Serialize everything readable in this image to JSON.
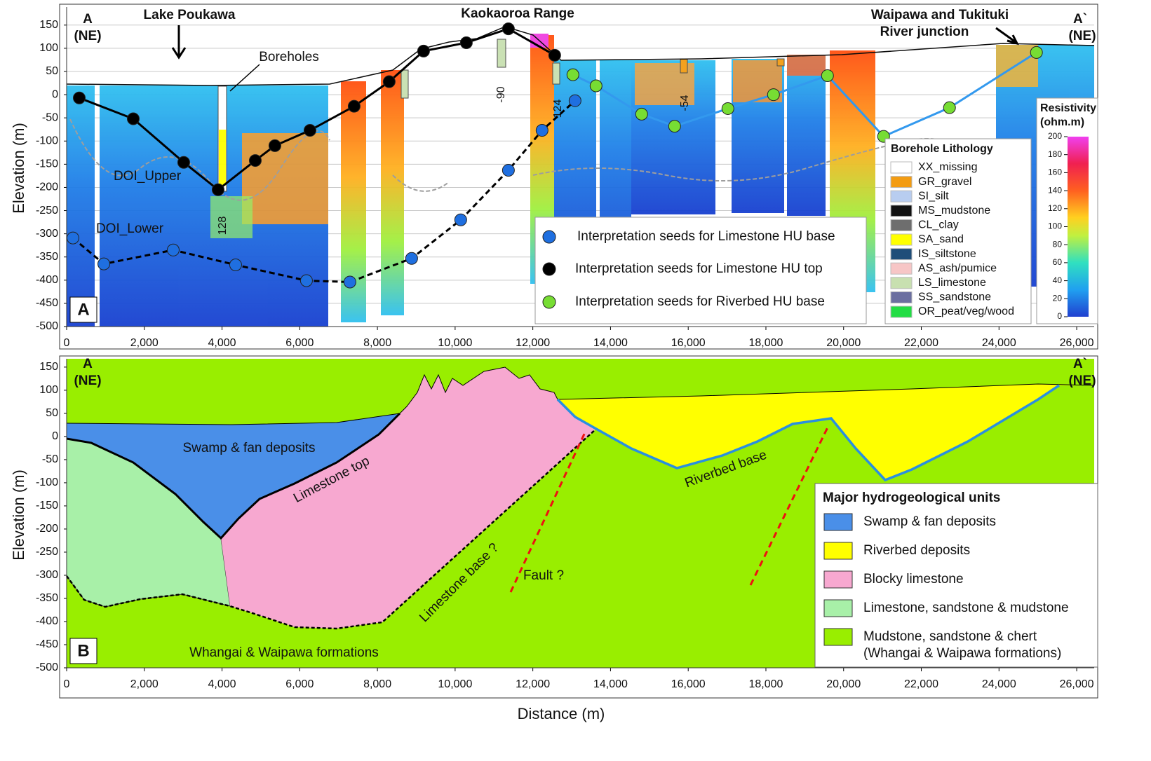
{
  "chart_data": [
    {
      "type": "scatter",
      "panel_label": "A",
      "x_label": "Distance (m)",
      "y_label": "Elevation (m)",
      "annotations": {
        "left_end": "A",
        "left_end_dir": "(NE)",
        "lake": "Lake Poukawa",
        "range": "Kaokaoroa Range",
        "junction_1": "Waipawa and Tukituki",
        "junction_2": "River junction",
        "right_end": "A`",
        "right_end_dir": "(NE)",
        "boreholes": "Boreholes",
        "doi_upper": "DOI_Upper",
        "doi_lower": "DOI_Lower",
        "bh_1": "128",
        "bh_2": "-90",
        "bh_3": "124",
        "bh_4": "-54"
      },
      "xlim": [
        0,
        26450
      ],
      "ylim": [
        -500,
        189
      ],
      "xticks": [
        0,
        {
          "value": 2000,
          "label": "2,000"
        },
        {
          "value": 4000,
          "label": "4,000"
        },
        {
          "value": 6000,
          "label": "6,000"
        },
        {
          "value": 8000,
          "label": "8,000"
        },
        {
          "value": 10000,
          "label": "10,000"
        },
        {
          "value": 12000,
          "label": "12,000"
        },
        {
          "value": 14000,
          "label": "14,000"
        },
        {
          "value": 16000,
          "label": "16,000"
        },
        {
          "value": 18000,
          "label": "18,000"
        },
        {
          "value": 20000,
          "label": "20,000"
        },
        {
          "value": 22000,
          "label": "22,000"
        },
        {
          "value": 24000,
          "label": "24,000"
        },
        {
          "value": 26000,
          "label": "26,000"
        }
      ],
      "yticks": [
        -500,
        -450,
        -400,
        -350,
        -300,
        -250,
        -200,
        -150,
        -100,
        -50,
        0,
        50,
        100,
        150
      ],
      "grid": true,
      "series": [
        {
          "name": "Interpretation seeds for Limestone  HU base",
          "color": "#1f6fe0",
          "line_color": "#000000",
          "line_style": "dashed",
          "x": [
            162,
            957,
            2744,
            4350,
            6173,
            7292,
            8881,
            10144,
            11372,
            12238,
            13087
          ],
          "values": [
            -309,
            -365,
            -335,
            -367,
            -401,
            -404,
            -353,
            -270,
            -163,
            -77,
            -13
          ]
        },
        {
          "name": "Interpretation seeds for Limestone  HU top",
          "color": "#000000",
          "line_color": "#000000",
          "line_style": "solid",
          "x": [
            325,
            1715,
            3014,
            3899,
            4856,
            5361,
            6264,
            7401,
            8303,
            9188,
            10289,
            11372,
            12563
          ],
          "values": [
            -7,
            -52,
            -146,
            -205,
            -142,
            -110,
            -77,
            -25,
            28,
            94,
            112,
            142,
            85
          ]
        },
        {
          "name": "Interpretation seeds for Riverbed  HU base",
          "color": "#77dd33",
          "line_color": "#3399ee",
          "line_style": "solid",
          "x": [
            13032,
            13628,
            14801,
            15650,
            17021,
            18195,
            19585,
            21029,
            22726,
            24964
          ],
          "values": [
            43,
            19,
            -42,
            -68,
            -30,
            0,
            41,
            -90,
            -28,
            91
          ]
        }
      ],
      "lithology": {
        "title": "Borehole Lithology",
        "items": [
          {
            "label": "XX_missing",
            "color": "#ffffff"
          },
          {
            "label": "GR_gravel",
            "color": "#f39c12"
          },
          {
            "label": "SI_silt",
            "color": "#b8cdf0"
          },
          {
            "label": "MS_mudstone",
            "color": "#111111"
          },
          {
            "label": "CL_clay",
            "color": "#6e6e6e"
          },
          {
            "label": "SA_sand",
            "color": "#ffff00"
          },
          {
            "label": "IS_siltstone",
            "color": "#1f4e79"
          },
          {
            "label": "AS_ash/pumice",
            "color": "#f7c6c6"
          },
          {
            "label": "LS_limestone",
            "color": "#c8e0b0"
          },
          {
            "label": "SS_sandstone",
            "color": "#6b6fa0"
          },
          {
            "label": "OR_peat/veg/wood",
            "color": "#22dd44"
          }
        ]
      },
      "colorbar": {
        "title": [
          "Resistivity",
          "(ohm.m)"
        ],
        "ticks": [
          0,
          20,
          40,
          60,
          80,
          100,
          120,
          140,
          160,
          180,
          200
        ],
        "lim": [
          0,
          200
        ]
      }
    },
    {
      "type": "area",
      "panel_label": "B",
      "x_label": "Distance (m)",
      "y_label": "Elevation (m)",
      "annotations": {
        "left_end": "A",
        "left_end_dir": "(NE)",
        "right_end": "A`",
        "right_end_dir": "(NE)",
        "swamp": "Swamp & fan deposits",
        "limestone_top": "Limestone top",
        "riverbed_base": "Riverbed base",
        "limestone_base": "Limestone base ?",
        "fault": "Fault ?",
        "formations": "Whangai & Waipawa formations"
      },
      "xlim": [
        0,
        26450
      ],
      "ylim": [
        -500,
        168
      ],
      "xticks": [
        0,
        {
          "value": 2000,
          "label": "2,000"
        },
        {
          "value": 4000,
          "label": "4,000"
        },
        {
          "value": 6000,
          "label": "6,000"
        },
        {
          "value": 8000,
          "label": "8,000"
        },
        {
          "value": 10000,
          "label": "10,000"
        },
        {
          "value": 12000,
          "label": "12,000"
        },
        {
          "value": 14000,
          "label": "14,000"
        },
        {
          "value": 16000,
          "label": "16,000"
        },
        {
          "value": 18000,
          "label": "18,000"
        },
        {
          "value": 20000,
          "label": "20,000"
        },
        {
          "value": 22000,
          "label": "22,000"
        },
        {
          "value": 24000,
          "label": "24,000"
        },
        {
          "value": 26000,
          "label": "26,000"
        }
      ],
      "yticks": [
        -500,
        -450,
        -400,
        -350,
        -300,
        -250,
        -200,
        -150,
        -100,
        -50,
        0,
        50,
        100,
        150
      ],
      "grid": false,
      "legend": {
        "title": "Major hydrogeological units",
        "items": [
          {
            "lines": [
              "Swamp & fan deposits"
            ],
            "color": "#4a8fe8"
          },
          {
            "lines": [
              "Riverbed deposits"
            ],
            "color": "#ffff00"
          },
          {
            "lines": [
              "Blocky limestone"
            ],
            "color": "#f7a8d0"
          },
          {
            "lines": [
              "Limestone, sandstone & mudstone"
            ],
            "color": "#a8f0a8"
          },
          {
            "lines": [
              "Mudstone, sandstone & chert",
              "(Whangai & Waipawa formations)"
            ],
            "color": "#99ee00"
          }
        ]
      }
    }
  ]
}
